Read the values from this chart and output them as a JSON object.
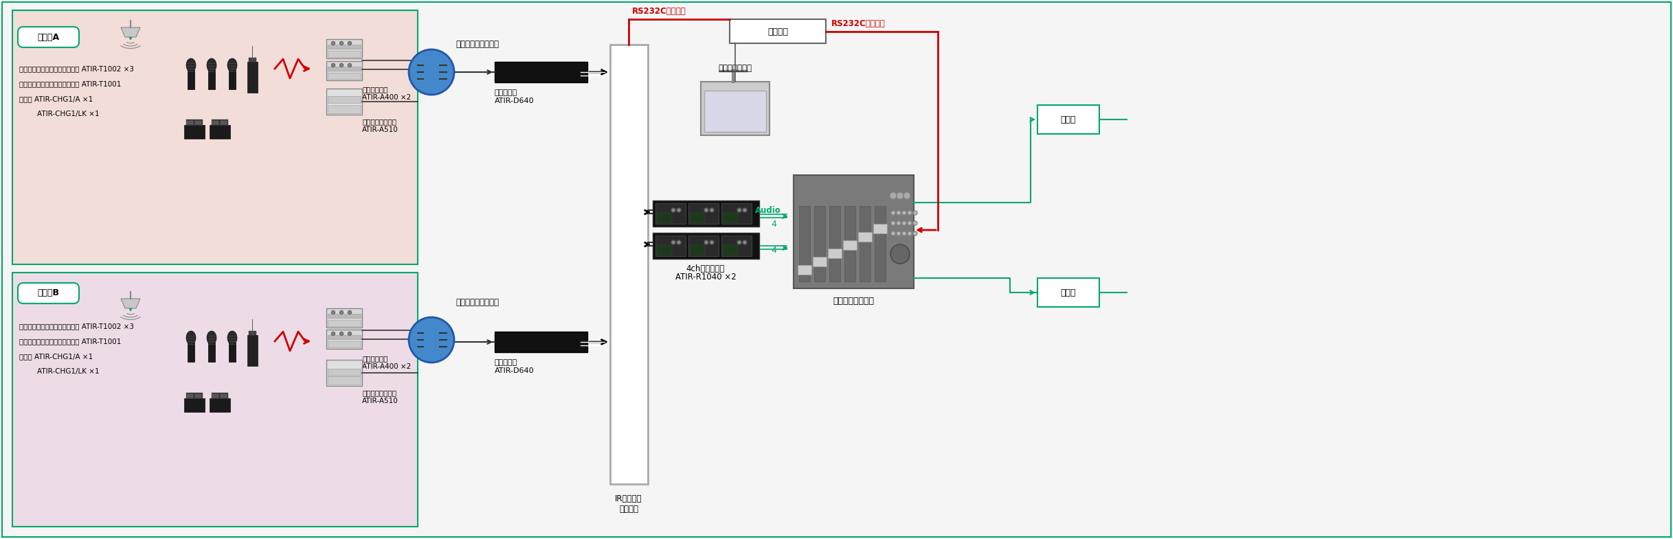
{
  "bg_color": "#f5f5f5",
  "room_a_color": "#f2ddd8",
  "room_b_color": "#eddce8",
  "green_color": "#00a86b",
  "red_color": "#cc0000",
  "fig_width": 24.35,
  "fig_height": 7.85,
  "room_a_label": "会議室A",
  "room_b_label": "会議室B",
  "room_a_line1": "ハンドヘルドトランスミッター ATIR-T1002 ×3",
  "room_a_line2": "ボディパックトランスミッター ATIR-T1001",
  "room_a_line3": "充電器 ATIR-CHG1/A ×1",
  "room_a_line4": "        ATIR-CHG1/LK ×1",
  "room_b_line1": "ハンドヘルドトランスミッター ATIR-T1002 ×3",
  "room_b_line2": "ボディパックトランスミッター ATIR-T1001",
  "room_b_line3": "充電器 ATIR-CHG1/A ×1",
  "room_b_line4": "        ATIR-CHG1/LK ×1",
  "jukouunit_line1": "受光ユニット",
  "jukouunit_line2": "ATIR-A400 ×2",
  "kouiki_line1": "広域受光ユニット",
  "kouiki_line2": "ATIR-A510",
  "cable_label": "ケーブル長自動補正",
  "konbu_line1": "混合分配器",
  "konbu_line2": "ATIR-D640",
  "ir_line1": "IR切り替え",
  "ir_line2": "ユニット",
  "receiver_line1": "4chレシーバー",
  "receiver_line2": "ATIR-R1040 ×2",
  "digital_mixer_label": "デジタルミキサー",
  "touch_panel_label": "タッチパネル等",
  "control_device_label": "制御装置",
  "rs232c_label": "RS232C制御など",
  "amp_label": "アンプ",
  "audio_label": "Audio"
}
